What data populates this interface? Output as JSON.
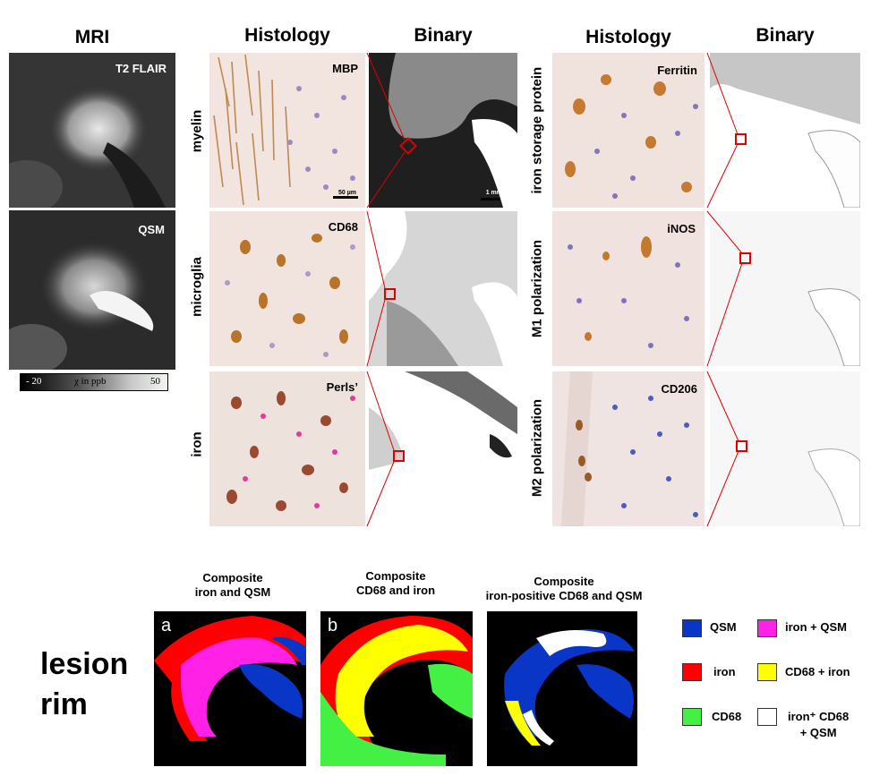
{
  "headers": {
    "mri": "MRI",
    "histology_left": "Histology",
    "binary_left": "Binary",
    "histology_right": "Histology",
    "binary_right": "Binary"
  },
  "mri": {
    "t2_label": "T2 FLAIR",
    "qsm_label": "QSM",
    "colorbar": {
      "min": "- 20",
      "unit": "χ in ppb",
      "max": "50"
    }
  },
  "rows_left": [
    {
      "label": "myelin",
      "stain": "MBP",
      "scale_histo": "50 µm",
      "scale_binary": "1 mm"
    },
    {
      "label": "microglia",
      "stain": "CD68"
    },
    {
      "label": "iron",
      "stain": "Perls’"
    }
  ],
  "rows_right": [
    {
      "label": "iron storage protein",
      "stain": "Ferritin"
    },
    {
      "label": "M1 polarization",
      "stain": "iNOS"
    },
    {
      "label": "M2 polarization",
      "stain": "CD206"
    }
  ],
  "composites": [
    {
      "title_1": "Composite",
      "title_2": "iron and QSM",
      "letter": "a"
    },
    {
      "title_1": "Composite",
      "title_2": "CD68 and iron",
      "letter": "b"
    },
    {
      "title_1": "Composite",
      "title_2": "iron-positive CD68 and QSM",
      "letter": ""
    }
  ],
  "lesion_label": {
    "line1": "lesion",
    "line2": "rim"
  },
  "legend": [
    {
      "label": "QSM",
      "color": "#0a36c8"
    },
    {
      "label": "iron + QSM",
      "color": "#ff22e6"
    },
    {
      "label": "iron",
      "color": "#ff0000"
    },
    {
      "label": "CD68 + iron",
      "color": "#ffff00"
    },
    {
      "label": "CD68",
      "color": "#44f044"
    },
    {
      "label_1": "iron⁺ CD68",
      "label_2": "+ QSM",
      "color": "#ffffff"
    }
  ]
}
